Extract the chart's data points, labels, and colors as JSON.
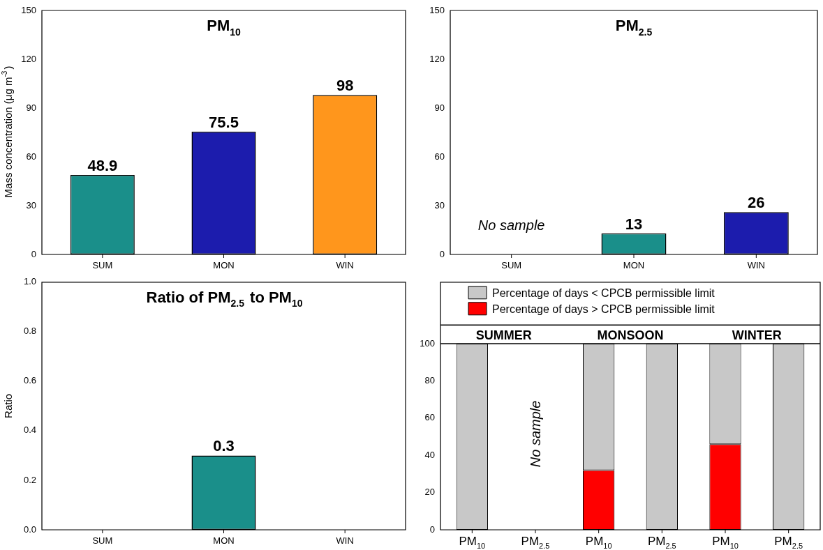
{
  "chart_data": [
    {
      "type": "bar",
      "title": "PM$_{10}$",
      "ylabel": "Mass concentration (μg m$^{-3}$)",
      "categories": [
        "SUM",
        "MON",
        "WIN"
      ],
      "values": [
        48.9,
        75.5,
        98
      ],
      "colors": [
        "#1a8f8a",
        "#1c1cad",
        "#ff961c"
      ],
      "ylim": [
        0,
        150
      ],
      "yticks": [
        0,
        30,
        60,
        90,
        120,
        150
      ],
      "data_labels": true
    },
    {
      "type": "bar",
      "title": "PM$_{2.5}$",
      "categories": [
        "SUM",
        "MON",
        "WIN"
      ],
      "values": [
        null,
        13,
        26
      ],
      "colors": [
        "#1a8f8a",
        "#1a8f8a",
        "#1c1cad"
      ],
      "ylim": [
        0,
        150
      ],
      "yticks": [
        0,
        30,
        60,
        90,
        120,
        150
      ],
      "data_labels": true,
      "annotations": [
        "No sample"
      ]
    },
    {
      "type": "bar",
      "title": "Ratio of PM$_{2.5}$ to PM$_{10}$",
      "ylabel": "Ratio",
      "categories": [
        "SUM",
        "MON",
        "WIN"
      ],
      "values": [
        null,
        0.3,
        null
      ],
      "colors": [
        "#1a8f8a",
        "#1a8f8a",
        "#1a8f8a"
      ],
      "ylim": [
        0,
        1
      ],
      "yticks": [
        {
          "value": 0,
          "label": "0.0"
        },
        {
          "value": 0.2,
          "label": "0.2"
        },
        {
          "value": 0.4,
          "label": "0.4"
        },
        {
          "value": 0.6,
          "label": "0.6"
        },
        {
          "value": 0.8,
          "label": "0.8"
        },
        {
          "value": 1,
          "label": "1.0"
        }
      ],
      "data_labels": true
    },
    {
      "type": "bar",
      "stacked": true,
      "categories": [
        "PM$_{10}$",
        "PM$_{2.5}$",
        "PM$_{10}$",
        "PM$_{2.5}$",
        "PM$_{10}$",
        "PM$_{2.5}$"
      ],
      "series": [
        {
          "name": "Percentage of days > CPCB permissible limit",
          "color": "#ff0000",
          "values": [
            0,
            null,
            32,
            0,
            46,
            0
          ]
        },
        {
          "name": "Percentage of days < CPCB permissible limit",
          "color": "#c8c8c8",
          "values": [
            100,
            null,
            68,
            100,
            54,
            100
          ]
        }
      ],
      "ylim": [
        0,
        133
      ],
      "yticks": [
        0,
        20,
        40,
        60,
        80,
        100
      ],
      "legend": "top",
      "ref_lines": [
        {
          "axis": "y",
          "value": 100
        },
        {
          "axis": "y",
          "value": 110
        }
      ],
      "annotations": [
        "SUMMER",
        "MONSOON",
        "WINTER",
        "No sample"
      ]
    }
  ]
}
